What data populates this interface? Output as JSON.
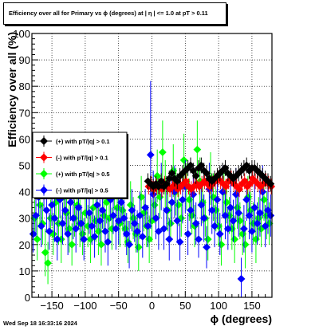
{
  "page": {
    "datestamp": "Wed Sep 18 16:33:16 2024"
  },
  "colors": {
    "background": "#ffffff",
    "frame": "#000000",
    "grid": "#000000",
    "plus_01": "#000000",
    "minus_01": "#ff0000",
    "plus_05": "#00ff00",
    "minus_05": "#0000ff"
  },
  "chart_data": {
    "type": "scatter",
    "marker": "diamond",
    "error_bars": true,
    "title": "Efficiency over all for Primary vs ϕ (degrees) at |  η | <= 1.0 at pT > 0.11",
    "xlabel": "ϕ (degrees)",
    "ylabel": "Efficiency over all (%)",
    "xlim": [
      -180,
      180
    ],
    "ylim": [
      0,
      100
    ],
    "xticks": [
      -150,
      -100,
      -50,
      0,
      50,
      100,
      150
    ],
    "xtick_labels": [
      "−150",
      "−100",
      "−50",
      "0",
      "50",
      "100",
      "150"
    ],
    "yticks": [
      0,
      10,
      20,
      30,
      40,
      50,
      60,
      70,
      80,
      90,
      100
    ],
    "ytick_labels": [
      "0",
      "10",
      "20",
      "30",
      "40",
      "50",
      "60",
      "70",
      "80",
      "90",
      "100"
    ],
    "grid": true,
    "legend_position": "left-middle",
    "series": [
      {
        "name": "(+) with pT/|q| > 0.1",
        "color": "#000000",
        "x": [
          -6,
          -2,
          2,
          6,
          10,
          14,
          18,
          22,
          26,
          30,
          34,
          38,
          42,
          46,
          50,
          54,
          58,
          62,
          66,
          70,
          74,
          78,
          82,
          86,
          90,
          94,
          98,
          102,
          106,
          110,
          114,
          118,
          122,
          126,
          130,
          134,
          138,
          142,
          146,
          150,
          154,
          158,
          162,
          166,
          170,
          174,
          178
        ],
        "y": [
          44,
          43,
          42,
          43,
          42,
          44,
          42,
          43,
          45,
          47,
          45,
          44,
          46,
          47,
          48,
          49,
          50,
          48,
          46,
          49,
          50,
          48,
          47,
          45,
          44,
          45,
          46,
          47,
          48,
          49,
          47,
          46,
          45,
          46,
          47,
          48,
          49,
          50,
          48,
          49,
          49,
          48,
          47,
          46,
          45,
          44,
          43
        ],
        "err": [
          3,
          3,
          3,
          3,
          3,
          3,
          3,
          3,
          3,
          3,
          3,
          3,
          3,
          3,
          3,
          3,
          3,
          3,
          3,
          3,
          3,
          3,
          3,
          3,
          3,
          3,
          3,
          3,
          3,
          3,
          3,
          3,
          3,
          3,
          3,
          3,
          3,
          3,
          3,
          3,
          3,
          3,
          3,
          3,
          3,
          3,
          3
        ]
      },
      {
        "name": "(-) with pT/|q| > 0.1",
        "color": "#ff0000",
        "x": [
          -5,
          -1,
          3,
          7,
          11,
          15,
          19,
          23,
          27,
          31,
          35,
          39,
          43,
          47,
          51,
          55,
          59,
          63,
          67,
          71,
          75,
          79,
          83,
          87,
          91,
          95,
          99,
          103,
          107,
          111,
          115,
          119,
          123,
          127,
          131,
          135,
          139,
          143,
          147,
          151,
          155,
          159,
          163,
          167,
          171,
          175,
          179
        ],
        "y": [
          42,
          43,
          41,
          42,
          42,
          41,
          43,
          42,
          41,
          42,
          43,
          41,
          42,
          43,
          44,
          42,
          41,
          42,
          43,
          42,
          43,
          44,
          43,
          42,
          43,
          44,
          45,
          44,
          43,
          42,
          44,
          45,
          43,
          42,
          41,
          43,
          44,
          42,
          43,
          45,
          44,
          43,
          42,
          43,
          44,
          43,
          42
        ],
        "err": [
          3,
          3,
          3,
          3,
          3,
          3,
          3,
          3,
          3,
          3,
          3,
          3,
          3,
          3,
          3,
          3,
          3,
          3,
          3,
          3,
          3,
          3,
          3,
          3,
          3,
          3,
          3,
          3,
          3,
          3,
          3,
          3,
          3,
          3,
          3,
          3,
          3,
          3,
          3,
          3,
          3,
          3,
          3,
          3,
          3,
          3,
          3
        ]
      },
      {
        "name": "(+) with pT/|q| > 0.5",
        "color": "#00ff00",
        "x": [
          -176,
          -172,
          -168,
          -164,
          -160,
          -156,
          -152,
          -148,
          -144,
          -140,
          -136,
          -132,
          -128,
          -124,
          -120,
          -116,
          -112,
          -108,
          -104,
          -100,
          -96,
          -92,
          -88,
          -84,
          -80,
          -76,
          -72,
          -68,
          -64,
          -60,
          -56,
          -52,
          -48,
          -44,
          -40,
          -36,
          -32,
          -28,
          -24,
          -20,
          -16,
          -12,
          -8,
          -4,
          0,
          4,
          8,
          12,
          16,
          20,
          24,
          28,
          32,
          36,
          40,
          44,
          48,
          52,
          56,
          60,
          64,
          68,
          72,
          76,
          80,
          84,
          88,
          92,
          96,
          100,
          104,
          108,
          112,
          116,
          120,
          124,
          128,
          132,
          136,
          140,
          144,
          148,
          152,
          156,
          160,
          164,
          168,
          172,
          176
        ],
        "y": [
          30,
          22,
          35,
          28,
          17,
          13,
          30,
          24,
          36,
          28,
          22,
          38,
          32,
          26,
          20,
          30,
          35,
          28,
          24,
          32,
          27,
          22,
          34,
          29,
          25,
          20,
          31,
          36,
          30,
          26,
          40,
          34,
          28,
          33,
          26,
          21,
          35,
          30,
          24,
          19,
          38,
          32,
          27,
          22,
          29,
          35,
          46,
          38,
          55,
          43,
          33,
          28,
          48,
          40,
          35,
          30,
          52,
          42,
          37,
          31,
          27,
          56,
          44,
          36,
          30,
          22,
          45,
          38,
          33,
          27,
          20,
          40,
          36,
          31,
          26,
          22,
          34,
          29,
          24,
          20,
          38,
          33,
          28,
          22,
          30,
          26,
          37,
          31,
          28
        ],
        "err": [
          7,
          8,
          7,
          8,
          9,
          8,
          7,
          8,
          7,
          8,
          9,
          7,
          8,
          9,
          8,
          7,
          8,
          9,
          8,
          7,
          8,
          9,
          7,
          8,
          9,
          8,
          7,
          8,
          9,
          8,
          7,
          8,
          9,
          8,
          7,
          8,
          9,
          8,
          7,
          9,
          8,
          7,
          8,
          9,
          8,
          7,
          10,
          8,
          12,
          9,
          8,
          7,
          10,
          9,
          8,
          7,
          10,
          9,
          8,
          7,
          8,
          11,
          9,
          8,
          7,
          8,
          10,
          9,
          8,
          7,
          8,
          9,
          8,
          7,
          8,
          9,
          8,
          7,
          8,
          9,
          8,
          7,
          8,
          9,
          8,
          7,
          8,
          9,
          8
        ]
      },
      {
        "name": "(-) with pT/|q| > 0.5",
        "color": "#0000ff",
        "x": [
          -178,
          -174,
          -170,
          -166,
          -162,
          -158,
          -154,
          -150,
          -146,
          -142,
          -138,
          -134,
          -130,
          -126,
          -122,
          -118,
          -114,
          -110,
          -106,
          -102,
          -98,
          -94,
          -90,
          -86,
          -82,
          -78,
          -74,
          -70,
          -66,
          -62,
          -58,
          -54,
          -50,
          -46,
          -42,
          -38,
          -34,
          -30,
          -26,
          -22,
          -18,
          -14,
          -10,
          -6,
          -2,
          2,
          6,
          10,
          14,
          18,
          22,
          26,
          30,
          34,
          38,
          42,
          46,
          50,
          54,
          58,
          62,
          66,
          70,
          74,
          78,
          82,
          86,
          90,
          94,
          98,
          102,
          106,
          110,
          114,
          118,
          122,
          126,
          130,
          134,
          138,
          142,
          146,
          150,
          154,
          158,
          162,
          166,
          170,
          174,
          178
        ],
        "y": [
          24,
          31,
          38,
          27,
          40,
          33,
          25,
          35,
          30,
          22,
          37,
          28,
          33,
          24,
          36,
          30,
          26,
          34,
          28,
          22,
          39,
          32,
          27,
          23,
          35,
          29,
          33,
          25,
          21,
          37,
          31,
          26,
          29,
          36,
          30,
          24,
          20,
          33,
          28,
          25,
          31,
          23,
          34,
          27,
          54,
          39,
          30,
          25,
          42,
          26,
          33,
          22,
          36,
          40,
          29,
          21,
          37,
          42,
          24,
          33,
          39,
          28,
          22,
          35,
          30,
          19,
          41,
          33,
          27,
          37,
          24,
          40,
          31,
          26,
          34,
          29,
          39,
          32,
          7,
          26,
          37,
          31,
          25,
          34,
          28,
          32,
          40,
          27,
          33,
          31
        ],
        "err": [
          7,
          8,
          7,
          8,
          7,
          8,
          7,
          8,
          9,
          8,
          7,
          8,
          9,
          8,
          7,
          8,
          9,
          8,
          7,
          8,
          9,
          8,
          7,
          8,
          9,
          8,
          7,
          8,
          9,
          8,
          7,
          8,
          9,
          8,
          7,
          8,
          9,
          8,
          7,
          8,
          9,
          8,
          7,
          8,
          28,
          9,
          8,
          7,
          9,
          8,
          7,
          8,
          9,
          10,
          8,
          7,
          9,
          10,
          8,
          7,
          9,
          8,
          7,
          8,
          9,
          8,
          10,
          9,
          8,
          9,
          8,
          10,
          9,
          8,
          9,
          8,
          10,
          9,
          8,
          9,
          8,
          9,
          8,
          9,
          8,
          9,
          10,
          8,
          9,
          8
        ]
      }
    ]
  }
}
